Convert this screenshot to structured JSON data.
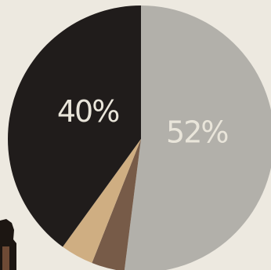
{
  "chart_data": {
    "type": "pie",
    "title": "",
    "slices": [
      {
        "value": 52,
        "label": "52%",
        "color": "#b2b0aa"
      },
      {
        "value": 4,
        "label": "",
        "color": "#775b48"
      },
      {
        "value": 4,
        "label": "",
        "color": "#cfae82"
      },
      {
        "value": 40,
        "label": "40%",
        "color": "#201c1b"
      }
    ],
    "start": "top",
    "direction": "clockwise",
    "label_color": "#e9e5da"
  },
  "decor": {
    "partial_figure_color": "#1c1612",
    "partial_figure_skin": "#6e4a35"
  }
}
